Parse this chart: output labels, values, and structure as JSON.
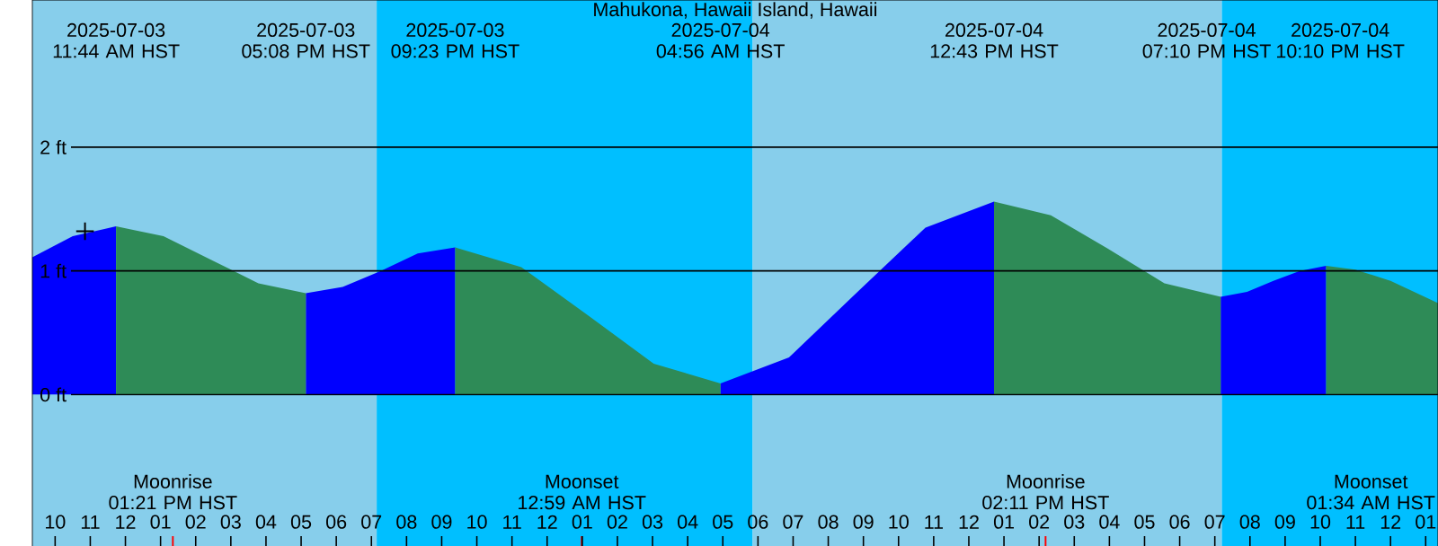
{
  "chart_data": {
    "type": "area",
    "title": "Mahukona, Hawaii Island, Hawaii",
    "x": [
      "2025-07-03T09:21",
      "2025-07-03T10:30",
      "2025-07-03T11:44",
      "2025-07-03T13:05",
      "2025-07-03T14:26",
      "2025-07-03T15:47",
      "2025-07-03T17:08",
      "2025-07-03T18:11",
      "2025-07-03T19:16",
      "2025-07-03T20:19",
      "2025-07-03T21:23",
      "2025-07-03T23:16",
      "2025-07-04T01:10",
      "2025-07-04T03:02",
      "2025-07-04T04:56",
      "2025-07-04T06:53",
      "2025-07-04T08:50",
      "2025-07-04T10:46",
      "2025-07-04T12:43",
      "2025-07-04T14:20",
      "2025-07-04T15:57",
      "2025-07-04T17:34",
      "2025-07-04T19:10",
      "2025-07-04T19:55",
      "2025-07-04T20:40",
      "2025-07-04T21:25",
      "2025-07-04T22:10",
      "2025-07-04T23:00",
      "2025-07-05T00:00",
      "2025-07-05T01:21"
    ],
    "series": [
      {
        "color": "#0000ff",
        "values": [
          1.11,
          1.28,
          1.36,
          null,
          null,
          null,
          0.82,
          0.87,
          1.0,
          1.14,
          1.19,
          null,
          null,
          null,
          0.09,
          0.3,
          0.83,
          1.35,
          1.56,
          null,
          null,
          null,
          0.79,
          0.83,
          0.92,
          1.0,
          1.04,
          null,
          null,
          null
        ]
      },
      {
        "color": "#2e8b57",
        "values": [
          null,
          null,
          1.36,
          1.28,
          1.09,
          0.9,
          0.82,
          null,
          null,
          null,
          1.19,
          1.03,
          0.64,
          0.25,
          0.09,
          null,
          null,
          null,
          1.56,
          1.45,
          1.18,
          0.9,
          0.79,
          null,
          null,
          null,
          1.04,
          1.01,
          0.92,
          0.74
        ]
      },
      {
        "type": "scatter",
        "marker": "cross",
        "color": "#000000",
        "x": [
          "2025-07-03T10:51"
        ],
        "values": [
          1.32
        ]
      }
    ],
    "xlim": [
      "2025-07-03T09:21",
      "2025-07-05T01:21"
    ],
    "ylim": [
      -1.23,
      3.19
    ],
    "yticks": [
      {
        "value": 0,
        "label": "0 ft"
      },
      {
        "value": 1,
        "label": "1 ft"
      },
      {
        "value": 2,
        "label": "2 ft"
      }
    ],
    "xticks": [
      {
        "value": "2025-07-03T10:00",
        "label": "10"
      },
      {
        "value": "2025-07-03T11:00",
        "label": "11"
      },
      {
        "value": "2025-07-03T12:00",
        "label": "12"
      },
      {
        "value": "2025-07-03T13:00",
        "label": "01"
      },
      {
        "value": "2025-07-03T14:00",
        "label": "02"
      },
      {
        "value": "2025-07-03T15:00",
        "label": "03"
      },
      {
        "value": "2025-07-03T16:00",
        "label": "04"
      },
      {
        "value": "2025-07-03T17:00",
        "label": "05"
      },
      {
        "value": "2025-07-03T18:00",
        "label": "06"
      },
      {
        "value": "2025-07-03T19:00",
        "label": "07"
      },
      {
        "value": "2025-07-03T20:00",
        "label": "08"
      },
      {
        "value": "2025-07-03T21:00",
        "label": "09"
      },
      {
        "value": "2025-07-03T22:00",
        "label": "10"
      },
      {
        "value": "2025-07-03T23:00",
        "label": "11"
      },
      {
        "value": "2025-07-04T00:00",
        "label": "12"
      },
      {
        "value": "2025-07-04T01:00",
        "label": "01"
      },
      {
        "value": "2025-07-04T02:00",
        "label": "02"
      },
      {
        "value": "2025-07-04T03:00",
        "label": "03"
      },
      {
        "value": "2025-07-04T04:00",
        "label": "04"
      },
      {
        "value": "2025-07-04T05:00",
        "label": "05"
      },
      {
        "value": "2025-07-04T06:00",
        "label": "06"
      },
      {
        "value": "2025-07-04T07:00",
        "label": "07"
      },
      {
        "value": "2025-07-04T08:00",
        "label": "08"
      },
      {
        "value": "2025-07-04T09:00",
        "label": "09"
      },
      {
        "value": "2025-07-04T10:00",
        "label": "10"
      },
      {
        "value": "2025-07-04T11:00",
        "label": "11"
      },
      {
        "value": "2025-07-04T12:00",
        "label": "12"
      },
      {
        "value": "2025-07-04T13:00",
        "label": "01"
      },
      {
        "value": "2025-07-04T14:00",
        "label": "02"
      },
      {
        "value": "2025-07-04T15:00",
        "label": "03"
      },
      {
        "value": "2025-07-04T16:00",
        "label": "04"
      },
      {
        "value": "2025-07-04T17:00",
        "label": "05"
      },
      {
        "value": "2025-07-04T18:00",
        "label": "06"
      },
      {
        "value": "2025-07-04T19:00",
        "label": "07"
      },
      {
        "value": "2025-07-04T20:00",
        "label": "08"
      },
      {
        "value": "2025-07-04T21:00",
        "label": "09"
      },
      {
        "value": "2025-07-04T22:00",
        "label": "10"
      },
      {
        "value": "2025-07-04T23:00",
        "label": "11"
      },
      {
        "value": "2025-07-05T00:00",
        "label": "12"
      },
      {
        "value": "2025-07-05T01:00",
        "label": "01"
      }
    ],
    "grid": "y",
    "bands": [
      {
        "axis": "x",
        "from": "2025-07-03T09:21",
        "to": "2025-07-03T19:09",
        "color": "#87ceeb"
      },
      {
        "axis": "x",
        "from": "2025-07-03T19:09",
        "to": "2025-07-04T05:51",
        "color": "#00bfff"
      },
      {
        "axis": "x",
        "from": "2025-07-04T05:51",
        "to": "2025-07-04T19:12",
        "color": "#87ceeb"
      },
      {
        "axis": "x",
        "from": "2025-07-04T19:12",
        "to": "2025-07-05T01:21",
        "color": "#00bfff"
      }
    ],
    "ref_lines": [
      {
        "axis": "x",
        "value": "2025-07-03T13:21",
        "label": "Moonrise 01:21 PM HST",
        "color": "#ff0000"
      },
      {
        "axis": "x",
        "value": "2025-07-04T00:59",
        "label": "Moonset 12:59 AM HST",
        "color": "#ff0000"
      },
      {
        "axis": "x",
        "value": "2025-07-04T14:11",
        "label": "Moonrise 02:11 PM HST",
        "color": "#ff0000"
      }
    ],
    "annotations": [
      "2025-07-03 11:44 AM HST",
      "2025-07-03 05:08 PM HST",
      "2025-07-03 09:23 PM HST",
      "2025-07-04 04:56 AM HST",
      "2025-07-04 12:43 PM HST",
      "2025-07-04 07:10 PM HST",
      "2025-07-04 10:10 PM HST",
      "Moonset 01:34 AM HST"
    ]
  }
}
